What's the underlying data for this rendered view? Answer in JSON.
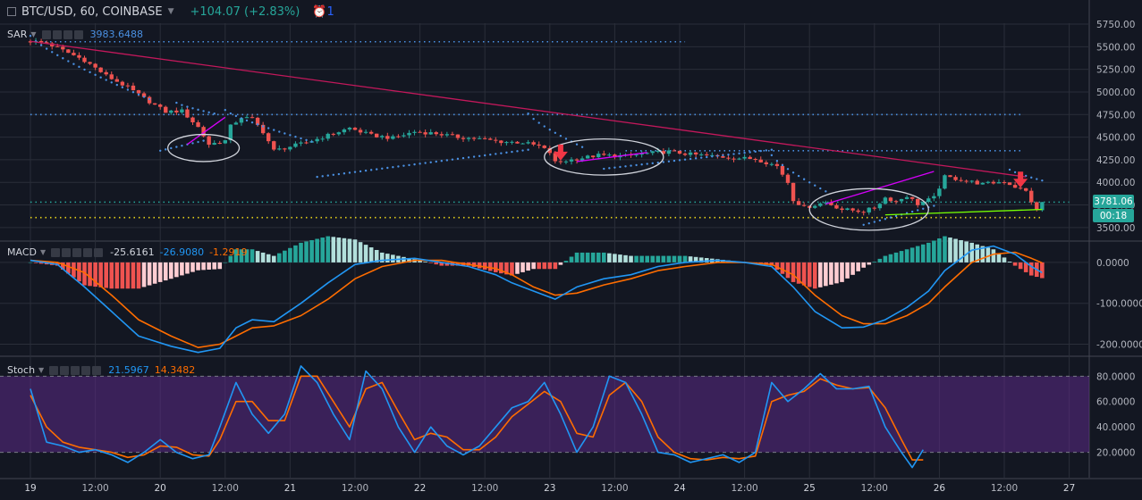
{
  "header": {
    "symbol": "BTC/USD, 60, COINBASE",
    "change": "+104.07 (+2.83%)",
    "alerts_count": "1"
  },
  "price_now": "3781.06",
  "countdown": "00:18",
  "colors": {
    "bg": "#131722",
    "up": "#26a69a",
    "down": "#ef5350",
    "grid": "#2a2e39",
    "macd": "#2196f3",
    "signal": "#ff6d00",
    "sar": "#4a90e2",
    "trendline": "#c2185b",
    "stoch_band": "#5b2a86"
  },
  "chart_data": [
    {
      "type": "candlestick",
      "title": "",
      "indicator_label": "SAR",
      "indicator_value": "3983.6488",
      "y_ticks": [
        "3500.00",
        "3750.00",
        "4000.00",
        "4250.00",
        "4500.00",
        "4750.00",
        "5000.00",
        "5250.00",
        "5500.00",
        "5750.00"
      ],
      "ylim": [
        3370,
        5760
      ],
      "x_tick_labels": [
        "19",
        "12:00",
        "20",
        "12:00",
        "21",
        "12:00",
        "22",
        "12:00",
        "23",
        "12:00",
        "24",
        "12:00",
        "25",
        "12:00",
        "26",
        "12:00",
        "27"
      ],
      "x_tick_hours": [
        0,
        12,
        24,
        36,
        48,
        60,
        72,
        84,
        96,
        108,
        120,
        132,
        144,
        156,
        168,
        180,
        192
      ],
      "close_path": [
        [
          0,
          5560
        ],
        [
          3,
          5540
        ],
        [
          6,
          5460
        ],
        [
          10,
          5350
        ],
        [
          14,
          5180
        ],
        [
          18,
          5050
        ],
        [
          21,
          4930
        ],
        [
          25,
          4780
        ],
        [
          28,
          4790
        ],
        [
          31,
          4610
        ],
        [
          33,
          4420
        ],
        [
          36,
          4460
        ],
        [
          37,
          4620
        ],
        [
          39,
          4720
        ],
        [
          41,
          4700
        ],
        [
          43,
          4560
        ],
        [
          45,
          4350
        ],
        [
          47,
          4380
        ],
        [
          51,
          4440
        ],
        [
          55,
          4520
        ],
        [
          59,
          4600
        ],
        [
          63,
          4520
        ],
        [
          67,
          4490
        ],
        [
          71,
          4560
        ],
        [
          75,
          4540
        ],
        [
          79,
          4500
        ],
        [
          83,
          4480
        ],
        [
          87,
          4450
        ],
        [
          91,
          4440
        ],
        [
          94,
          4400
        ],
        [
          96,
          4330
        ],
        [
          97,
          4220
        ],
        [
          101,
          4260
        ],
        [
          105,
          4300
        ],
        [
          110,
          4290
        ],
        [
          114,
          4320
        ],
        [
          118,
          4340
        ],
        [
          122,
          4310
        ],
        [
          126,
          4290
        ],
        [
          130,
          4270
        ],
        [
          134,
          4260
        ],
        [
          138,
          4180
        ],
        [
          140,
          4000
        ],
        [
          141,
          3810
        ],
        [
          143,
          3720
        ],
        [
          147,
          3780
        ],
        [
          150,
          3700
        ],
        [
          154,
          3680
        ],
        [
          156,
          3720
        ],
        [
          158,
          3830
        ],
        [
          160,
          3790
        ],
        [
          162,
          3850
        ],
        [
          164,
          3760
        ],
        [
          167,
          3830
        ],
        [
          169,
          4060
        ],
        [
          172,
          4030
        ],
        [
          176,
          3980
        ],
        [
          180,
          4010
        ],
        [
          182,
          3950
        ],
        [
          184,
          3900
        ],
        [
          186,
          3680
        ],
        [
          187,
          3781
        ]
      ],
      "sar_segments": [
        {
          "dir": "above",
          "hours": [
            0,
            22
          ],
          "values": [
            5620,
            4920
          ]
        },
        {
          "dir": "below",
          "hours": [
            24,
            32
          ],
          "values": [
            4350,
            4460
          ]
        },
        {
          "dir": "above",
          "hours": [
            27,
            34
          ],
          "values": [
            4880,
            4760
          ]
        },
        {
          "dir": "above",
          "hours": [
            36,
            52
          ],
          "values": [
            4800,
            4450
          ]
        },
        {
          "dir": "below",
          "hours": [
            53,
            92
          ],
          "values": [
            4060,
            4360
          ]
        },
        {
          "dir": "above",
          "hours": [
            92,
            102
          ],
          "values": [
            4760,
            4390
          ]
        },
        {
          "dir": "below",
          "hours": [
            106,
            137
          ],
          "values": [
            4150,
            4360
          ]
        },
        {
          "dir": "above",
          "hours": [
            137,
            147
          ],
          "values": [
            4300,
            3900
          ]
        },
        {
          "dir": "below",
          "hours": [
            154,
            167
          ],
          "values": [
            3530,
            3740
          ]
        },
        {
          "dir": "above",
          "hours": [
            181,
            187
          ],
          "values": [
            4140,
            4020
          ]
        }
      ],
      "h_dotted_lines": [
        {
          "value": 5555,
          "hours": [
            0,
            121
          ],
          "color": "#4a90e2"
        },
        {
          "value": 4750,
          "hours": [
            0,
            183
          ],
          "color": "#4a90e2"
        },
        {
          "value": 4350,
          "hours": [
            110,
            183
          ],
          "color": "#4a90e2"
        },
        {
          "value": 3781,
          "hours": [
            0,
            192
          ],
          "color": "#26a69a"
        },
        {
          "value": 3610,
          "hours": [
            0,
            187
          ],
          "color": "#e6d219"
        }
      ],
      "trendlines": [
        {
          "hours": [
            0,
            184
          ],
          "values": [
            5560,
            4060
          ],
          "color": "#c2185b"
        },
        {
          "hours": [
            29,
            36
          ],
          "values": [
            4420,
            4720
          ],
          "color": "#d500f9"
        },
        {
          "hours": [
            101,
            114
          ],
          "values": [
            4230,
            4330
          ],
          "color": "#d500f9"
        },
        {
          "hours": [
            147,
            167
          ],
          "values": [
            3760,
            4120
          ],
          "color": "#d500f9"
        },
        {
          "hours": [
            158,
            187
          ],
          "values": [
            3640,
            3700
          ],
          "color": "#76ff03"
        }
      ],
      "ellipses": [
        {
          "hour": 32,
          "value": 4380,
          "rh": 6.6,
          "rv": 150
        },
        {
          "hour": 106,
          "value": 4280,
          "rh": 11,
          "rv": 200
        },
        {
          "hour": 155,
          "value": 3700,
          "rh": 11,
          "rv": 230
        }
      ],
      "arrows": [
        {
          "hour": 98,
          "value": 4300
        },
        {
          "hour": 183,
          "value": 4000
        }
      ]
    },
    {
      "type": "macd",
      "title": "",
      "indicator_label": "MACD",
      "values_shown": {
        "histogram": "-25.6161",
        "macd": "-26.9080",
        "signal": "-1.2919"
      },
      "y_ticks": [
        "0.0000",
        "-100.0000",
        "-200.0000"
      ],
      "y_tick_values": [
        0,
        -100,
        -200
      ],
      "ylim": [
        -225,
        50
      ],
      "macd_path": [
        [
          0,
          5
        ],
        [
          5,
          -5
        ],
        [
          10,
          -60
        ],
        [
          15,
          -120
        ],
        [
          20,
          -180
        ],
        [
          26,
          -205
        ],
        [
          31,
          -220
        ],
        [
          35,
          -210
        ],
        [
          38,
          -160
        ],
        [
          41,
          -140
        ],
        [
          45,
          -145
        ],
        [
          50,
          -100
        ],
        [
          55,
          -50
        ],
        [
          60,
          -5
        ],
        [
          65,
          5
        ],
        [
          71,
          10
        ],
        [
          76,
          0
        ],
        [
          81,
          -10
        ],
        [
          86,
          -30
        ],
        [
          89,
          -50
        ],
        [
          93,
          -70
        ],
        [
          97,
          -90
        ],
        [
          101,
          -60
        ],
        [
          106,
          -40
        ],
        [
          111,
          -30
        ],
        [
          116,
          -10
        ],
        [
          121,
          0
        ],
        [
          127,
          5
        ],
        [
          132,
          0
        ],
        [
          137,
          -10
        ],
        [
          141,
          -60
        ],
        [
          145,
          -120
        ],
        [
          150,
          -160
        ],
        [
          154,
          -158
        ],
        [
          158,
          -140
        ],
        [
          162,
          -110
        ],
        [
          166,
          -70
        ],
        [
          169,
          -20
        ],
        [
          174,
          30
        ],
        [
          178,
          40
        ],
        [
          182,
          20
        ],
        [
          185,
          -10
        ],
        [
          187,
          -25
        ]
      ],
      "signal_path": [
        [
          0,
          5
        ],
        [
          5,
          0
        ],
        [
          10,
          -25
        ],
        [
          15,
          -80
        ],
        [
          20,
          -140
        ],
        [
          26,
          -180
        ],
        [
          31,
          -208
        ],
        [
          35,
          -200
        ],
        [
          38,
          -180
        ],
        [
          41,
          -160
        ],
        [
          45,
          -155
        ],
        [
          50,
          -130
        ],
        [
          55,
          -90
        ],
        [
          60,
          -40
        ],
        [
          65,
          -10
        ],
        [
          71,
          5
        ],
        [
          76,
          5
        ],
        [
          81,
          -5
        ],
        [
          86,
          -15
        ],
        [
          89,
          -30
        ],
        [
          93,
          -60
        ],
        [
          97,
          -80
        ],
        [
          101,
          -75
        ],
        [
          106,
          -55
        ],
        [
          111,
          -40
        ],
        [
          116,
          -20
        ],
        [
          121,
          -10
        ],
        [
          127,
          0
        ],
        [
          132,
          0
        ],
        [
          137,
          -5
        ],
        [
          141,
          -30
        ],
        [
          145,
          -80
        ],
        [
          150,
          -130
        ],
        [
          154,
          -150
        ],
        [
          158,
          -150
        ],
        [
          162,
          -130
        ],
        [
          166,
          -100
        ],
        [
          169,
          -60
        ],
        [
          174,
          0
        ],
        [
          178,
          20
        ],
        [
          182,
          25
        ],
        [
          185,
          10
        ],
        [
          187,
          -1
        ]
      ]
    },
    {
      "type": "stochastic",
      "title": "",
      "indicator_label": "Stoch",
      "values_shown": {
        "k": "21.5967",
        "d": "14.3482"
      },
      "y_ticks": [
        "20.0000",
        "40.0000",
        "60.0000",
        "80.0000"
      ],
      "y_tick_values": [
        20,
        40,
        60,
        80
      ],
      "band": [
        20,
        80
      ],
      "ylim": [
        0,
        95
      ],
      "k_path": [
        [
          0,
          70
        ],
        [
          3,
          28
        ],
        [
          6,
          25
        ],
        [
          9,
          20
        ],
        [
          12,
          22
        ],
        [
          15,
          18
        ],
        [
          18,
          12
        ],
        [
          21,
          20
        ],
        [
          24,
          30
        ],
        [
          27,
          20
        ],
        [
          30,
          15
        ],
        [
          33,
          18
        ],
        [
          35,
          40
        ],
        [
          38,
          75
        ],
        [
          41,
          50
        ],
        [
          44,
          35
        ],
        [
          47,
          50
        ],
        [
          50,
          88
        ],
        [
          53,
          75
        ],
        [
          56,
          50
        ],
        [
          59,
          30
        ],
        [
          62,
          84
        ],
        [
          65,
          70
        ],
        [
          68,
          40
        ],
        [
          71,
          20
        ],
        [
          74,
          40
        ],
        [
          77,
          25
        ],
        [
          80,
          18
        ],
        [
          83,
          25
        ],
        [
          86,
          40
        ],
        [
          89,
          55
        ],
        [
          92,
          60
        ],
        [
          95,
          75
        ],
        [
          98,
          50
        ],
        [
          101,
          20
        ],
        [
          104,
          40
        ],
        [
          107,
          80
        ],
        [
          110,
          75
        ],
        [
          113,
          50
        ],
        [
          116,
          20
        ],
        [
          119,
          18
        ],
        [
          122,
          12
        ],
        [
          125,
          15
        ],
        [
          128,
          18
        ],
        [
          131,
          12
        ],
        [
          134,
          20
        ],
        [
          137,
          75
        ],
        [
          140,
          60
        ],
        [
          143,
          70
        ],
        [
          146,
          82
        ],
        [
          149,
          70
        ],
        [
          152,
          70
        ],
        [
          155,
          72
        ],
        [
          158,
          40
        ],
        [
          161,
          20
        ],
        [
          163,
          8
        ],
        [
          165,
          22
        ]
      ],
      "d_path": [
        [
          0,
          65
        ],
        [
          3,
          40
        ],
        [
          6,
          28
        ],
        [
          9,
          24
        ],
        [
          12,
          22
        ],
        [
          15,
          20
        ],
        [
          18,
          16
        ],
        [
          21,
          18
        ],
        [
          24,
          25
        ],
        [
          27,
          24
        ],
        [
          30,
          18
        ],
        [
          33,
          17
        ],
        [
          35,
          30
        ],
        [
          38,
          60
        ],
        [
          41,
          60
        ],
        [
          44,
          45
        ],
        [
          47,
          45
        ],
        [
          50,
          80
        ],
        [
          53,
          80
        ],
        [
          56,
          60
        ],
        [
          59,
          40
        ],
        [
          62,
          70
        ],
        [
          65,
          75
        ],
        [
          68,
          52
        ],
        [
          71,
          30
        ],
        [
          74,
          35
        ],
        [
          77,
          32
        ],
        [
          80,
          22
        ],
        [
          83,
          22
        ],
        [
          86,
          32
        ],
        [
          89,
          48
        ],
        [
          92,
          58
        ],
        [
          95,
          68
        ],
        [
          98,
          60
        ],
        [
          101,
          35
        ],
        [
          104,
          32
        ],
        [
          107,
          65
        ],
        [
          110,
          75
        ],
        [
          113,
          60
        ],
        [
          116,
          32
        ],
        [
          119,
          20
        ],
        [
          122,
          15
        ],
        [
          125,
          14
        ],
        [
          128,
          16
        ],
        [
          131,
          15
        ],
        [
          134,
          17
        ],
        [
          137,
          60
        ],
        [
          140,
          65
        ],
        [
          143,
          68
        ],
        [
          146,
          78
        ],
        [
          149,
          73
        ],
        [
          152,
          70
        ],
        [
          155,
          71
        ],
        [
          158,
          55
        ],
        [
          161,
          30
        ],
        [
          163,
          14
        ],
        [
          165,
          14
        ]
      ]
    }
  ]
}
